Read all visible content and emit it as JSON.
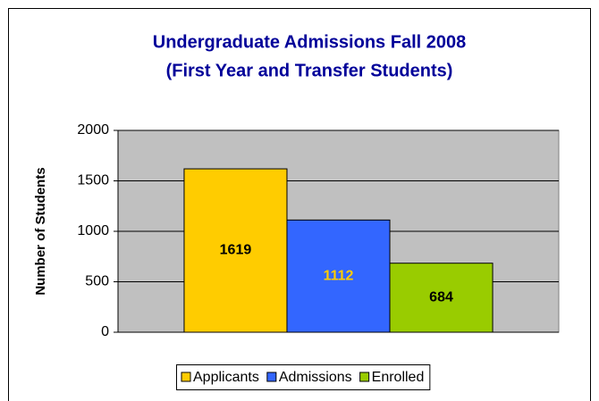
{
  "chart_data": {
    "type": "bar",
    "title": [
      "Undergraduate Admissions Fall 2008",
      "(First Year and Transfer Students)"
    ],
    "y_label": "Number of Students",
    "categories": [
      null
    ],
    "series": [
      {
        "name": "Applicants",
        "color": "#ffcc00",
        "label_color": "#000000",
        "values": [
          1619
        ]
      },
      {
        "name": "Admissions",
        "color": "#3366ff",
        "label_color": "#ffcc00",
        "values": [
          1112
        ]
      },
      {
        "name": "Enrolled",
        "color": "#99cc00",
        "label_color": "#000000",
        "values": [
          684
        ]
      }
    ],
    "ylim": [
      0,
      2000
    ],
    "yticks": [
      0,
      500,
      1000,
      1500,
      2000
    ],
    "grid": true,
    "legend": "bottom"
  }
}
